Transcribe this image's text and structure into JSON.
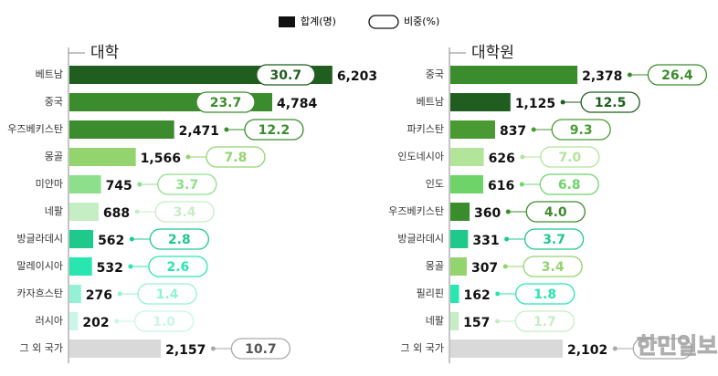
{
  "legend": [
    "합계(명)",
    "비중(%)"
  ],
  "watermark": "한민일보",
  "chart_data": [
    {
      "type": "bar",
      "orientation": "horizontal",
      "title": "대학",
      "categories": [
        "베트남",
        "중국",
        "우즈베키스탄",
        "몽골",
        "미얀마",
        "네팔",
        "방글라데시",
        "말레이시아",
        "카자흐스탄",
        "러시아",
        "그 외 국가"
      ],
      "series": [
        {
          "values": [
            6203,
            4784,
            2471,
            1566,
            745,
            688,
            562,
            532,
            276,
            202,
            2157
          ],
          "value_labels": [
            "6,203",
            "4,784",
            "2,471",
            "1,566",
            "745",
            "688",
            "562",
            "532",
            "276",
            "202",
            "2,157"
          ],
          "colors": [
            "#1f5e1f",
            "#3b8c2c",
            "#3b8c2c",
            "#93d46f",
            "#8ddf8b",
            "#c6eec4",
            "#1fc98b",
            "#27e6b0",
            "#93f1d5",
            "#c9f6e8",
            "#d9d9d9"
          ]
        },
        {
          "values": [
            30.7,
            23.7,
            12.2,
            7.8,
            3.7,
            3.4,
            2.8,
            2.6,
            1.4,
            1.0,
            10.7
          ],
          "value_labels": [
            "30.7",
            "23.7",
            "12.2",
            "7.8",
            "3.7",
            "3.4",
            "2.8",
            "2.6",
            "1.4",
            "1.0",
            "10.7"
          ]
        }
      ]
    },
    {
      "type": "bar",
      "orientation": "horizontal",
      "title": "대학원",
      "categories": [
        "중국",
        "베트남",
        "파키스탄",
        "인도네시아",
        "인도",
        "우즈베키스탄",
        "방글라데시",
        "몽골",
        "필리핀",
        "네팔",
        "그 외 국가"
      ],
      "series": [
        {
          "values": [
            2378,
            1125,
            837,
            626,
            616,
            360,
            331,
            307,
            162,
            157,
            2102
          ],
          "value_labels": [
            "2,378",
            "1,125",
            "837",
            "626",
            "616",
            "360",
            "331",
            "307",
            "162",
            "157",
            "2,102"
          ],
          "colors": [
            "#3b8c2c",
            "#1f5e1f",
            "#4a9a33",
            "#b2e49a",
            "#6ed46a",
            "#3b8c2c",
            "#1fc98b",
            "#93d46f",
            "#27e6b0",
            "#c6eec4",
            "#d9d9d9"
          ]
        },
        {
          "values": [
            26.4,
            12.5,
            9.3,
            7.0,
            6.8,
            4.0,
            3.7,
            3.4,
            1.8,
            1.7,
            null
          ],
          "value_labels": [
            "26.4",
            "12.5",
            "9.3",
            "7.0",
            "6.8",
            "4.0",
            "3.7",
            "3.4",
            "1.8",
            "1.7",
            null
          ]
        }
      ]
    }
  ]
}
